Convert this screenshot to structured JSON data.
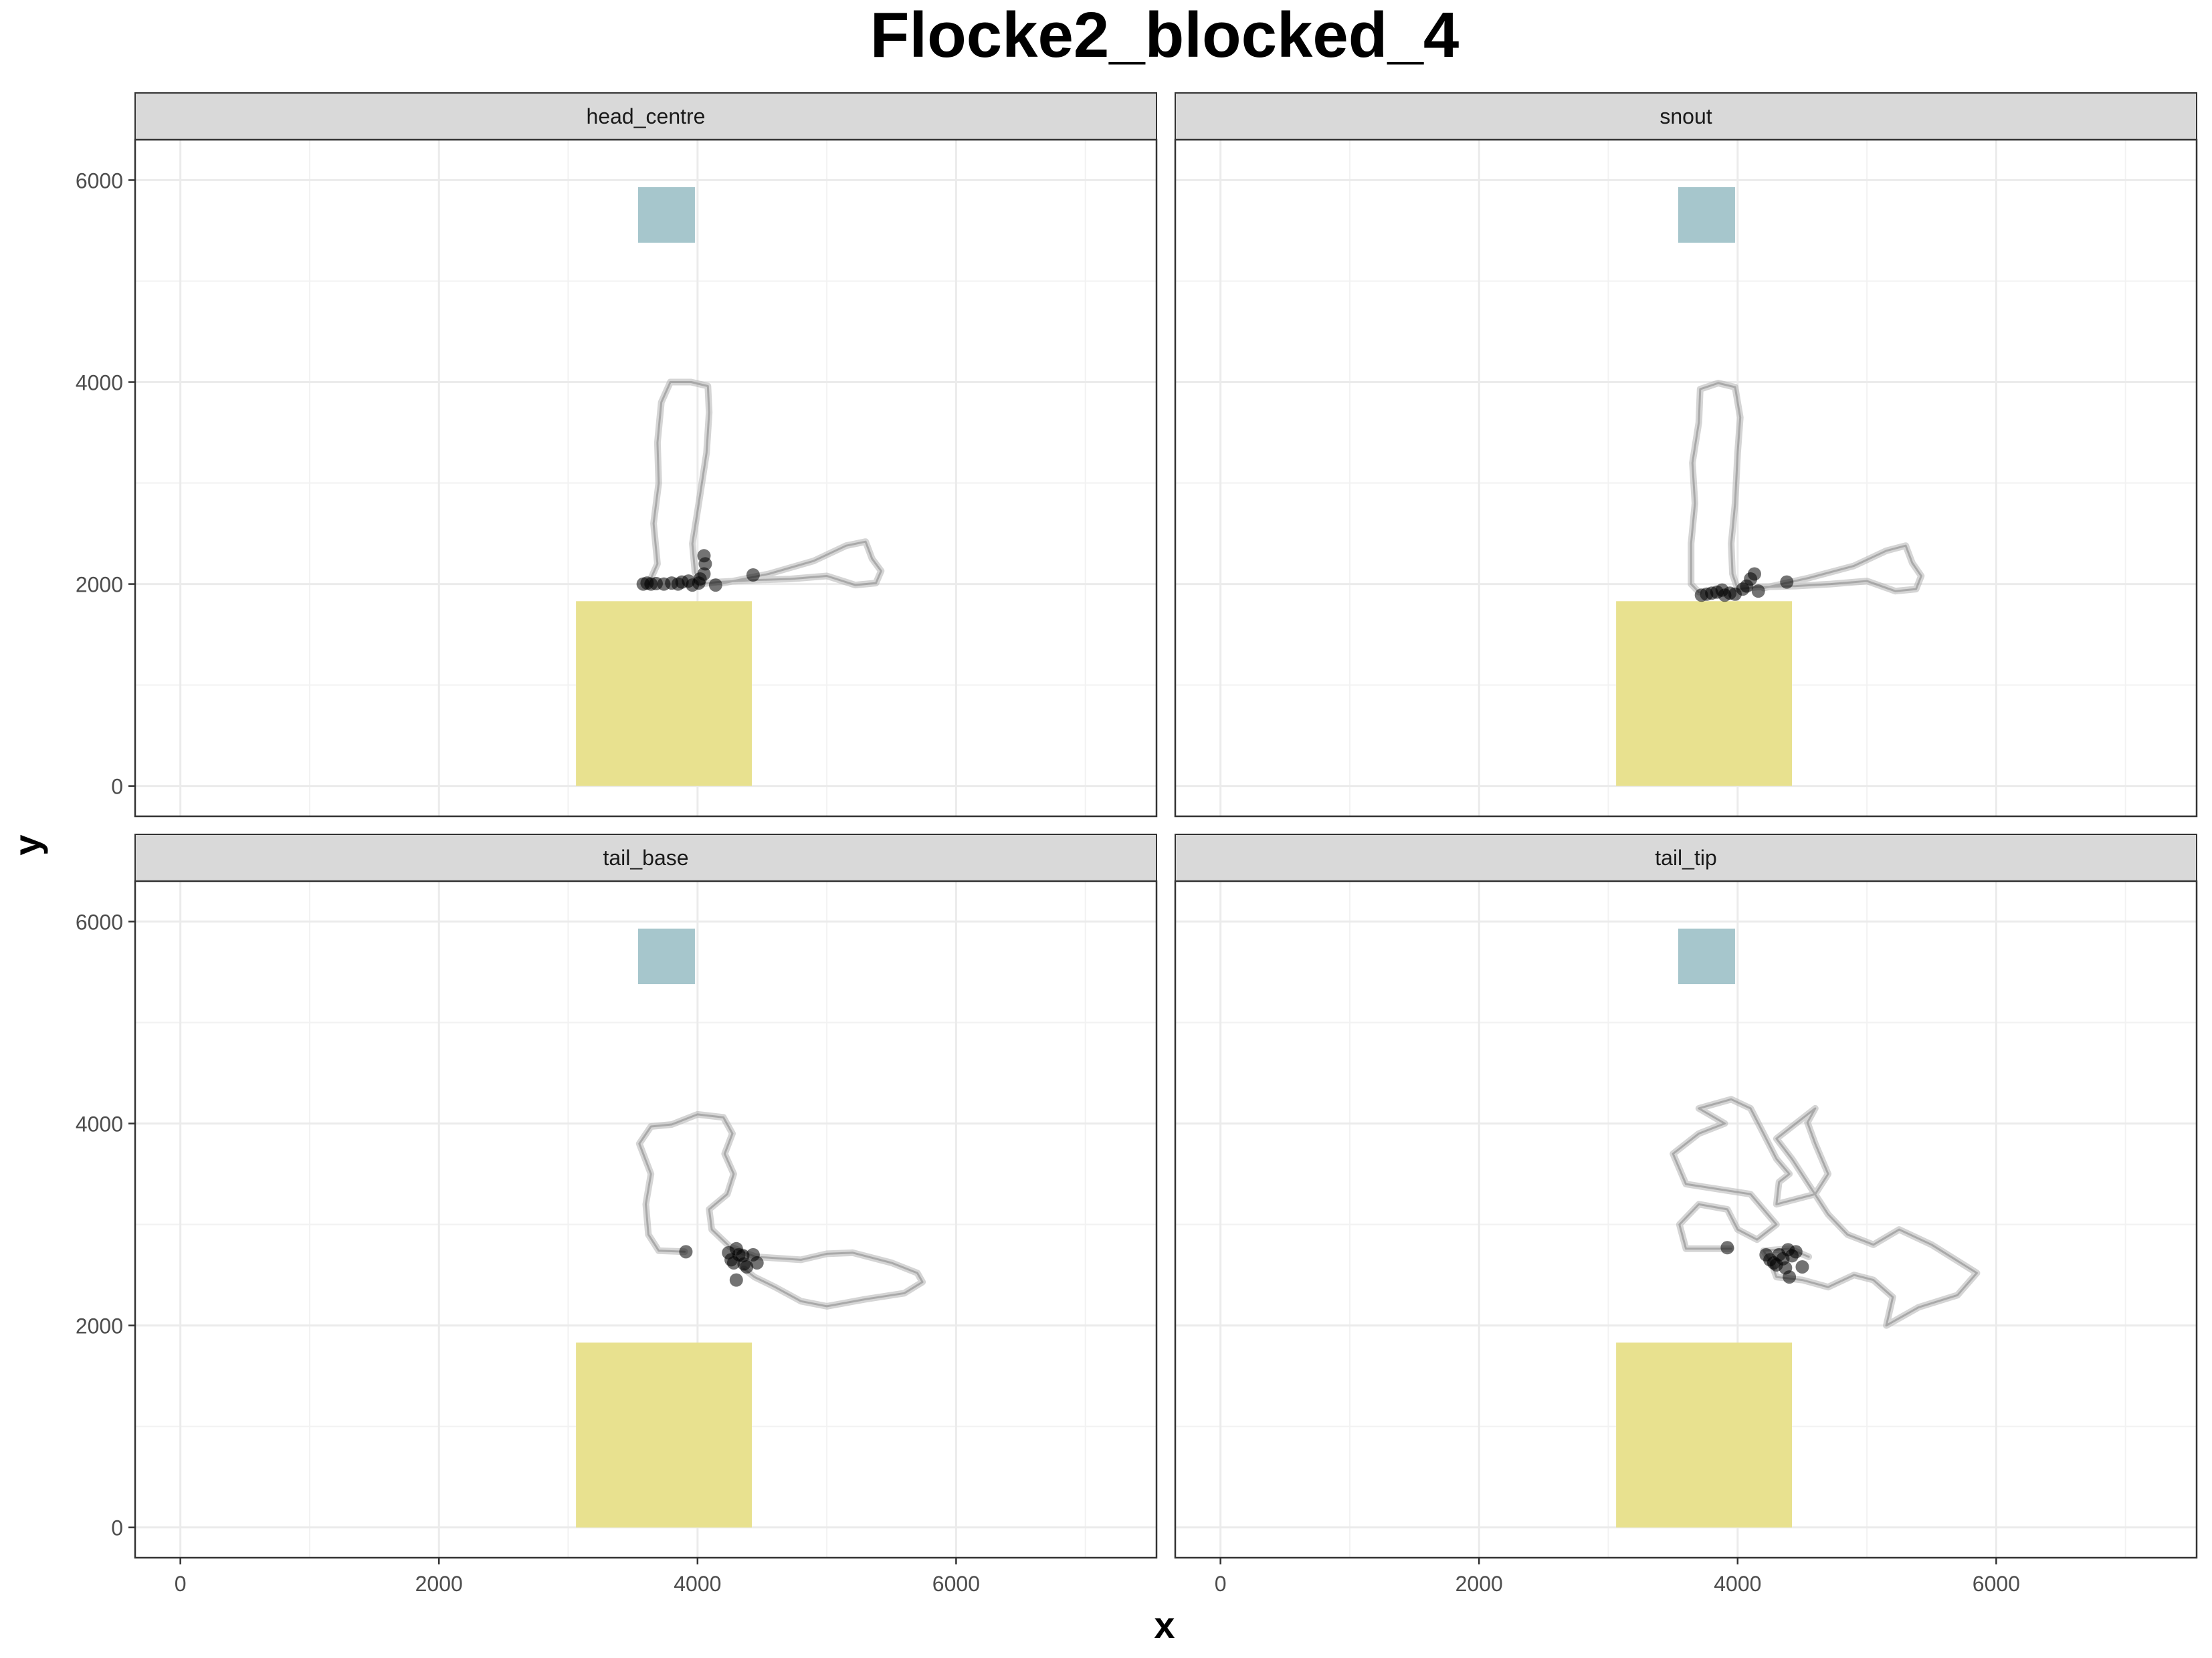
{
  "chart_data": {
    "type": "scatter",
    "title": "Flocke2_blocked_4",
    "xlabel": "x",
    "ylabel": "y",
    "xlim": [
      -350,
      7550
    ],
    "ylim": [
      -300,
      6400
    ],
    "x_ticks": [
      0,
      2000,
      4000,
      6000
    ],
    "x_tick_labels": [
      "0",
      "2000",
      "4000",
      "6000"
    ],
    "y_ticks": [
      0,
      2000,
      4000,
      6000
    ],
    "y_tick_labels": [
      "0",
      "2000",
      "4000",
      "6000"
    ],
    "x_minor_gridlines": [
      1000,
      3000,
      5000,
      7000
    ],
    "y_minor_gridlines": [
      1000,
      3000,
      5000
    ],
    "grid": true,
    "legend": "none",
    "theme": "bw",
    "zones": [
      {
        "name": "blue-zone",
        "x": [
          3540,
          3980
        ],
        "y": [
          5380,
          5930
        ],
        "color": "#a6c6cc"
      },
      {
        "name": "yellow-zone",
        "x": [
          3060,
          4420
        ],
        "y": [
          0,
          1830
        ],
        "color": "#e8e18f"
      }
    ],
    "colors": {
      "track": "#000000",
      "strip_fill": "#d9d9d9",
      "panel_border": "#333333",
      "grid": "#ebebeb"
    },
    "panels": [
      {
        "label": "head_centre",
        "path": [
          [
            4200,
            2010
          ],
          [
            4550,
            2100
          ],
          [
            4900,
            2230
          ],
          [
            5150,
            2380
          ],
          [
            5300,
            2420
          ],
          [
            5350,
            2250
          ],
          [
            5420,
            2130
          ],
          [
            5380,
            2010
          ],
          [
            5220,
            1990
          ],
          [
            5000,
            2080
          ],
          [
            4720,
            2050
          ],
          [
            4450,
            2040
          ],
          [
            4150,
            2020
          ],
          [
            4020,
            2000
          ],
          [
            3980,
            2120
          ],
          [
            3960,
            2400
          ],
          [
            4010,
            2800
          ],
          [
            4070,
            3300
          ],
          [
            4090,
            3700
          ],
          [
            4080,
            3960
          ],
          [
            3950,
            4000
          ],
          [
            3790,
            4000
          ],
          [
            3720,
            3800
          ],
          [
            3690,
            3400
          ],
          [
            3700,
            3000
          ],
          [
            3660,
            2600
          ],
          [
            3690,
            2200
          ],
          [
            3620,
            2000
          ]
        ],
        "points": [
          [
            3580,
            2000
          ],
          [
            3610,
            2010
          ],
          [
            3640,
            2000
          ],
          [
            3680,
            2005
          ],
          [
            3740,
            2000
          ],
          [
            3800,
            2010
          ],
          [
            3850,
            2000
          ],
          [
            3880,
            2020
          ],
          [
            3930,
            2030
          ],
          [
            3960,
            1990
          ],
          [
            4010,
            2010
          ],
          [
            4020,
            2050
          ],
          [
            4050,
            2100
          ],
          [
            4060,
            2200
          ],
          [
            4050,
            2280
          ],
          [
            4140,
            1990
          ],
          [
            4430,
            2090
          ]
        ]
      },
      {
        "label": "snout",
        "path": [
          [
            4200,
            1960
          ],
          [
            4550,
            2060
          ],
          [
            4900,
            2180
          ],
          [
            5150,
            2330
          ],
          [
            5300,
            2380
          ],
          [
            5350,
            2210
          ],
          [
            5420,
            2080
          ],
          [
            5380,
            1950
          ],
          [
            5220,
            1930
          ],
          [
            5000,
            2030
          ],
          [
            4720,
            2000
          ],
          [
            4450,
            1980
          ],
          [
            4150,
            1970
          ],
          [
            4000,
            1950
          ],
          [
            3960,
            2100
          ],
          [
            3950,
            2400
          ],
          [
            3980,
            2800
          ],
          [
            4000,
            3300
          ],
          [
            4020,
            3650
          ],
          [
            3980,
            3950
          ],
          [
            3850,
            3990
          ],
          [
            3710,
            3930
          ],
          [
            3700,
            3600
          ],
          [
            3650,
            3200
          ],
          [
            3670,
            2800
          ],
          [
            3640,
            2400
          ],
          [
            3640,
            2000
          ],
          [
            3700,
            1920
          ]
        ],
        "points": [
          [
            3720,
            1890
          ],
          [
            3760,
            1900
          ],
          [
            3800,
            1910
          ],
          [
            3840,
            1920
          ],
          [
            3880,
            1940
          ],
          [
            3900,
            1890
          ],
          [
            3940,
            1910
          ],
          [
            3980,
            1900
          ],
          [
            4040,
            1950
          ],
          [
            4070,
            1980
          ],
          [
            4100,
            2050
          ],
          [
            4130,
            2100
          ],
          [
            4160,
            1930
          ],
          [
            4380,
            2020
          ]
        ]
      },
      {
        "label": "tail_base",
        "path": [
          [
            3900,
            2730
          ],
          [
            3700,
            2740
          ],
          [
            3620,
            2900
          ],
          [
            3600,
            3200
          ],
          [
            3640,
            3500
          ],
          [
            3550,
            3800
          ],
          [
            3640,
            3970
          ],
          [
            3800,
            3990
          ],
          [
            4000,
            4090
          ],
          [
            4200,
            4060
          ],
          [
            4270,
            3900
          ],
          [
            4210,
            3700
          ],
          [
            4280,
            3500
          ],
          [
            4230,
            3300
          ],
          [
            4090,
            3150
          ],
          [
            4110,
            2950
          ],
          [
            4250,
            2780
          ],
          [
            4450,
            2680
          ],
          [
            4800,
            2650
          ],
          [
            5000,
            2710
          ],
          [
            5200,
            2720
          ],
          [
            5500,
            2620
          ],
          [
            5700,
            2520
          ],
          [
            5740,
            2430
          ],
          [
            5600,
            2320
          ],
          [
            5300,
            2260
          ],
          [
            5000,
            2190
          ],
          [
            4800,
            2240
          ],
          [
            4600,
            2380
          ],
          [
            4440,
            2480
          ],
          [
            4360,
            2560
          ]
        ],
        "points": [
          [
            3910,
            2730
          ],
          [
            4240,
            2720
          ],
          [
            4260,
            2650
          ],
          [
            4280,
            2620
          ],
          [
            4300,
            2760
          ],
          [
            4320,
            2700
          ],
          [
            4350,
            2690
          ],
          [
            4360,
            2610
          ],
          [
            4380,
            2580
          ],
          [
            4430,
            2700
          ],
          [
            4460,
            2620
          ],
          [
            4300,
            2450
          ]
        ]
      },
      {
        "label": "tail_tip",
        "path": [
          [
            3950,
            2760
          ],
          [
            3600,
            2760
          ],
          [
            3550,
            3000
          ],
          [
            3700,
            3200
          ],
          [
            3920,
            3150
          ],
          [
            4000,
            2950
          ],
          [
            4150,
            2850
          ],
          [
            4300,
            3000
          ],
          [
            4100,
            3300
          ],
          [
            3600,
            3400
          ],
          [
            3500,
            3700
          ],
          [
            3700,
            3900
          ],
          [
            3900,
            4000
          ],
          [
            3700,
            4150
          ],
          [
            3950,
            4240
          ],
          [
            4100,
            4150
          ],
          [
            4200,
            3900
          ],
          [
            4300,
            3650
          ],
          [
            4400,
            3500
          ],
          [
            4320,
            3420
          ],
          [
            4300,
            3200
          ],
          [
            4600,
            3300
          ],
          [
            4700,
            3500
          ],
          [
            4600,
            3800
          ],
          [
            4540,
            4010
          ],
          [
            4600,
            4150
          ],
          [
            4300,
            3850
          ],
          [
            4420,
            3650
          ],
          [
            4700,
            3100
          ],
          [
            4850,
            2900
          ],
          [
            5050,
            2800
          ],
          [
            5250,
            2950
          ],
          [
            5500,
            2800
          ],
          [
            5750,
            2600
          ],
          [
            5850,
            2520
          ],
          [
            5700,
            2300
          ],
          [
            5400,
            2180
          ],
          [
            5150,
            2000
          ],
          [
            5200,
            2280
          ],
          [
            5050,
            2450
          ],
          [
            4900,
            2500
          ],
          [
            4700,
            2380
          ],
          [
            4500,
            2450
          ],
          [
            4300,
            2480
          ],
          [
            4260,
            2620
          ],
          [
            4200,
            2740
          ],
          [
            4400,
            2760
          ],
          [
            4550,
            2680
          ]
        ],
        "points": [
          [
            3920,
            2770
          ],
          [
            4220,
            2700
          ],
          [
            4250,
            2650
          ],
          [
            4280,
            2620
          ],
          [
            4300,
            2600
          ],
          [
            4320,
            2700
          ],
          [
            4350,
            2660
          ],
          [
            4370,
            2570
          ],
          [
            4390,
            2750
          ],
          [
            4420,
            2690
          ],
          [
            4450,
            2730
          ],
          [
            4400,
            2480
          ],
          [
            4500,
            2580
          ]
        ]
      }
    ]
  }
}
